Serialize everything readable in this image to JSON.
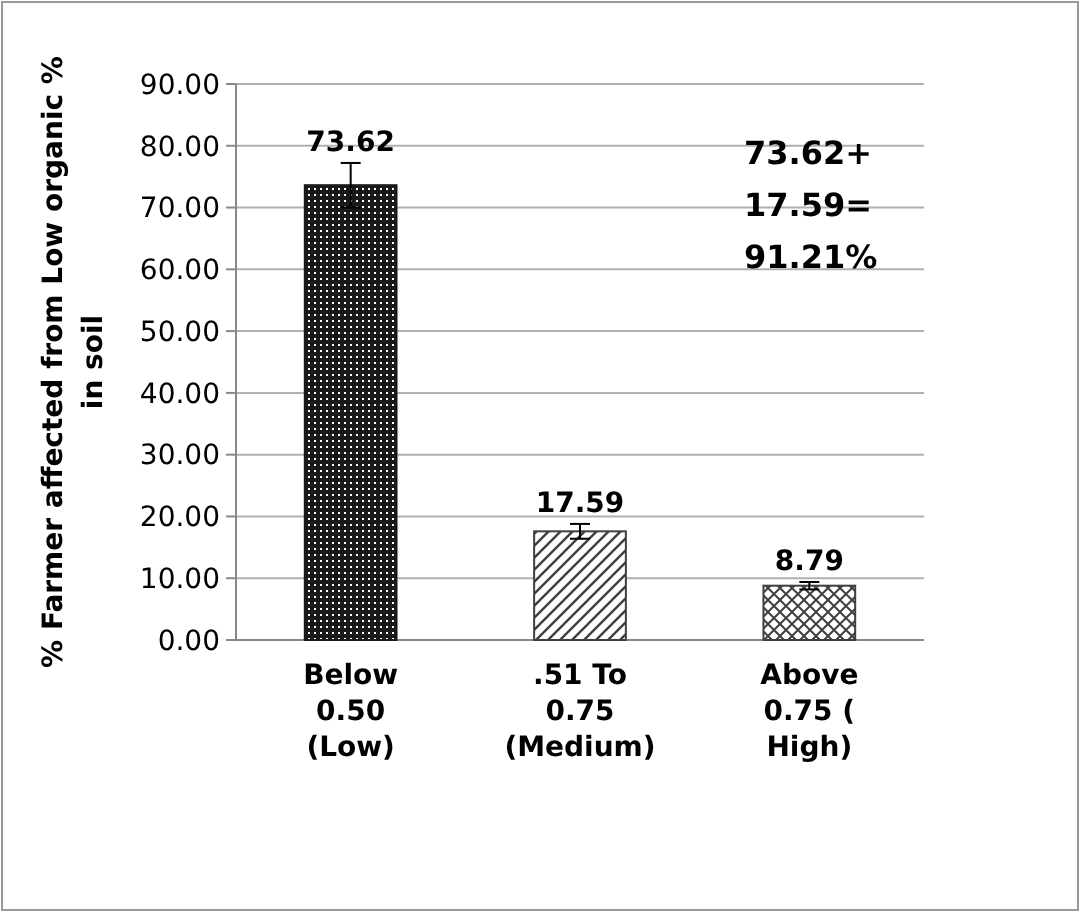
{
  "chart_data": {
    "type": "bar",
    "ylabel": "% Farmer affected from Low organic % in soil",
    "categories": [
      "Below\n0.50\n(Low)",
      ".51 To\n0.75\n(Medium)",
      "Above\n0.75 (\nHigh)"
    ],
    "values": [
      73.62,
      17.59,
      8.79
    ],
    "colors": [
      "#1a1a1a",
      "#404040",
      "#404040"
    ],
    "errors": [
      3.6,
      1.2,
      0.6
    ],
    "data_labels": true,
    "ylim": [
      0,
      90
    ],
    "yticks": [
      {
        "value": 0,
        "label": "0.00"
      },
      {
        "value": 10,
        "label": "10.00"
      },
      {
        "value": 20,
        "label": "20.00"
      },
      {
        "value": 30,
        "label": "30.00"
      },
      {
        "value": 40,
        "label": "40.00"
      },
      {
        "value": 50,
        "label": "50.00"
      },
      {
        "value": 60,
        "label": "60.00"
      },
      {
        "value": 70,
        "label": "70.00"
      },
      {
        "value": 80,
        "label": "80.00"
      },
      {
        "value": 90,
        "label": "90.00"
      }
    ],
    "grid": "y",
    "annotations": [
      "73.62+\n17.59=\n91.21%"
    ]
  }
}
